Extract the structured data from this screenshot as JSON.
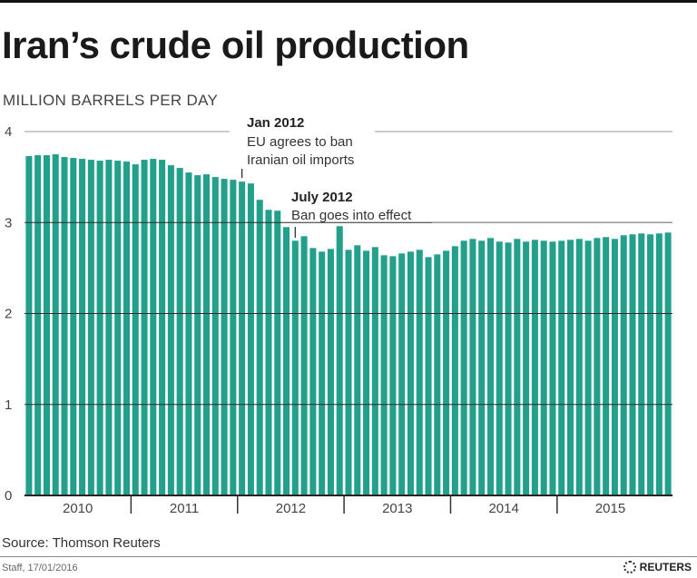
{
  "chart_data": {
    "type": "bar",
    "title": "Iran’s crude oil production",
    "ylabel": "MILLION BARRELS PER DAY",
    "xlabel": "",
    "ylim": [
      0,
      4
    ],
    "yticks": [
      "0",
      "1",
      "2",
      "3",
      "4"
    ],
    "grid": true,
    "year_labels": [
      "2010",
      "2011",
      "2012",
      "2013",
      "2014",
      "2015"
    ],
    "start_month": "Jan 2010",
    "values": [
      3.73,
      3.74,
      3.74,
      3.75,
      3.72,
      3.71,
      3.7,
      3.69,
      3.68,
      3.69,
      3.68,
      3.67,
      3.64,
      3.69,
      3.7,
      3.69,
      3.63,
      3.6,
      3.55,
      3.52,
      3.53,
      3.5,
      3.48,
      3.47,
      3.45,
      3.43,
      3.25,
      3.14,
      3.13,
      2.95,
      2.8,
      2.85,
      2.72,
      2.68,
      2.71,
      2.96,
      2.7,
      2.75,
      2.69,
      2.73,
      2.64,
      2.63,
      2.66,
      2.68,
      2.7,
      2.62,
      2.65,
      2.69,
      2.74,
      2.8,
      2.82,
      2.8,
      2.83,
      2.79,
      2.78,
      2.82,
      2.79,
      2.81,
      2.8,
      2.79,
      2.8,
      2.81,
      2.82,
      2.8,
      2.83,
      2.84,
      2.82,
      2.86,
      2.87,
      2.88,
      2.87,
      2.88,
      2.89
    ],
    "annotations": [
      {
        "bold": "Jan 2012",
        "lines": [
          "EU agrees to ban",
          "Iranian oil imports"
        ],
        "month_index": 24
      },
      {
        "bold": "July 2012",
        "lines": [
          "Ban goes into effect"
        ],
        "month_index": 30
      }
    ],
    "color": "#23a08c"
  },
  "source": "Source: Thomson Reuters",
  "credit": "Staff, 17/01/2016",
  "brand": "REUTERS"
}
